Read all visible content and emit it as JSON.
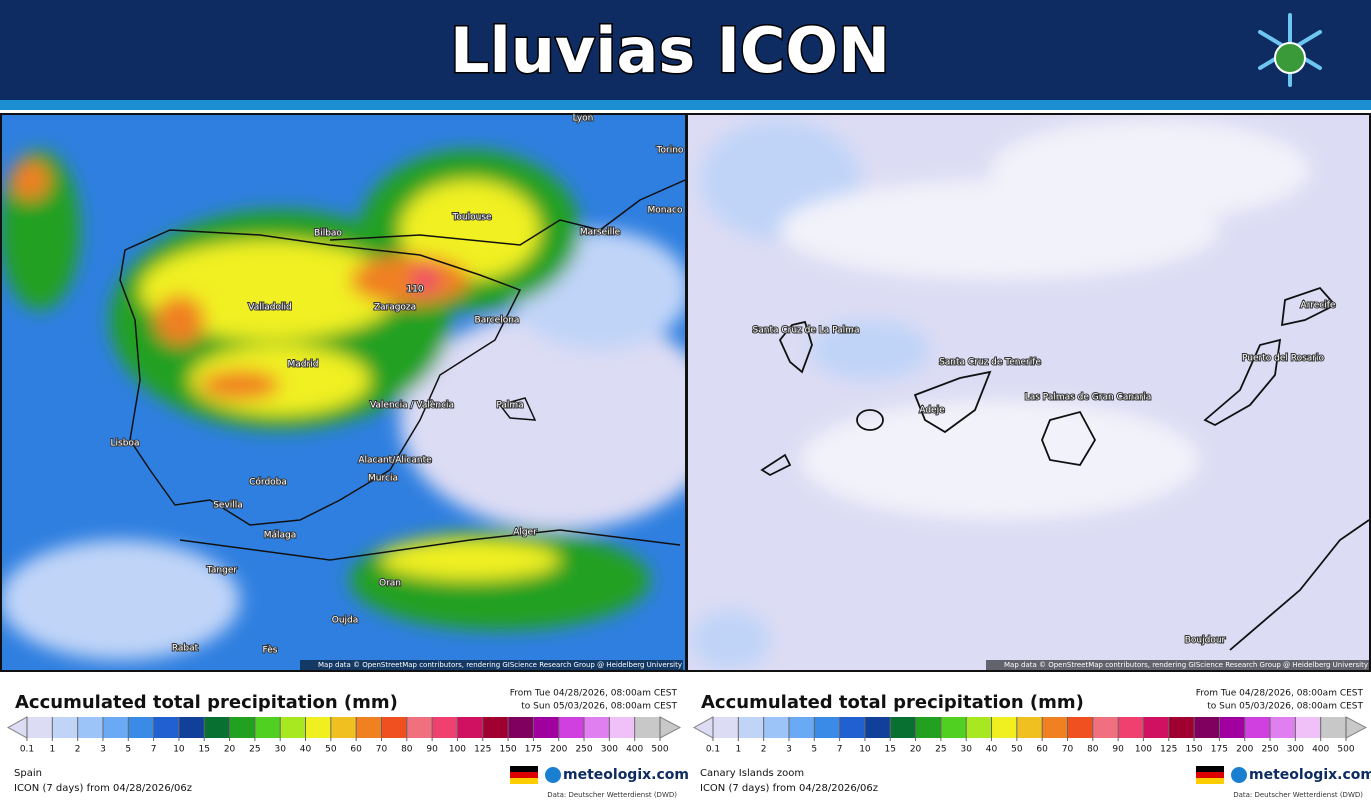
{
  "header": {
    "title": "Lluvias ICON"
  },
  "panels": [
    {
      "map": {
        "labels": [
          "Lyon",
          "Torino",
          "Monaco",
          "Toulouse",
          "Marseille",
          "Bilbao",
          "Valladolid",
          "Zaragoza",
          "Barcelona",
          "Madrid",
          "Valencia / València",
          "Palma",
          "Lisboa",
          "Córdoba",
          "Alacant/Alicante",
          "Murcia",
          "Sevilla",
          "Málaga",
          "Alger",
          "Tanger",
          "Oran",
          "Oujda",
          "Rabat",
          "Fès",
          "110"
        ],
        "attribution": "Map data © OpenStreetMap contributors, rendering GIScience Research Group @ Heidelberg University"
      },
      "legend": {
        "title": "Accumulated total precipitation (mm)",
        "from": "From Tue 04/28/2026, 08:00am CEST",
        "to": "to Sun 05/03/2026, 08:00am CEST",
        "ticks": [
          0.1,
          1,
          2,
          3,
          5,
          7,
          10,
          15,
          20,
          25,
          30,
          40,
          50,
          60,
          70,
          80,
          90,
          100,
          125,
          150,
          175,
          200,
          250,
          300,
          400,
          500
        ]
      },
      "region": "Spain",
      "model": "ICON (7 days) from 04/28/2026/06z",
      "brand": "meteologix.com",
      "source": "Data: Deutscher Wetterdienst (DWD)"
    },
    {
      "map": {
        "labels": [
          "Santa Cruz de La Palma",
          "Santa Cruz de Tenerife",
          "Adeje",
          "Las Palmas de Gran Canaria",
          "Puerto del Rosario",
          "Arrecife",
          "Boujdour"
        ],
        "attribution": "Map data © OpenStreetMap contributors, rendering GIScience Research Group @ Heidelberg University"
      },
      "legend": {
        "title": "Accumulated total precipitation (mm)",
        "from": "From Tue 04/28/2026, 08:00am CEST",
        "to": "to Sun 05/03/2026, 08:00am CEST",
        "ticks": [
          0.1,
          1,
          2,
          3,
          5,
          7,
          10,
          15,
          20,
          25,
          30,
          40,
          50,
          60,
          70,
          80,
          90,
          100,
          125,
          150,
          175,
          200,
          250,
          300,
          400,
          500
        ]
      },
      "region": "Canary Islands zoom",
      "model": "ICON (7 days) from 04/28/2026/06z",
      "brand": "meteologix.com",
      "source": "Data: Deutscher Wetterdienst (DWD)"
    }
  ]
}
